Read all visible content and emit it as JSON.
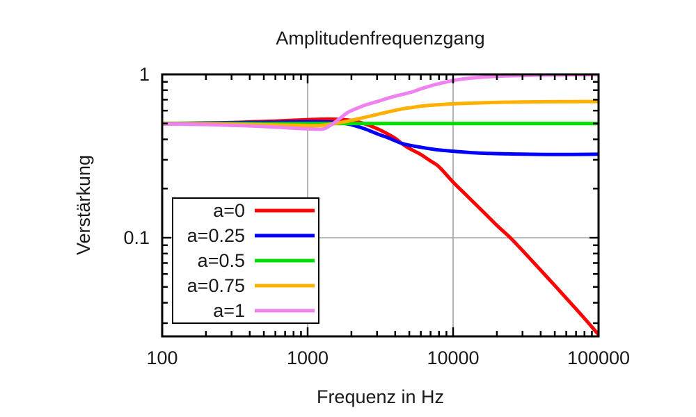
{
  "chart_data": {
    "type": "line",
    "title": "Amplitudenfrequenzgang",
    "xlabel": "Frequenz in Hz",
    "ylabel": "Verstärkung",
    "x_scale": "log",
    "y_scale": "log",
    "xlim": [
      100,
      100000
    ],
    "ylim": [
      0.0249,
      1.0
    ],
    "x_ticks": {
      "major": [
        100,
        1000,
        10000,
        100000
      ],
      "labels": [
        "100",
        "1000",
        "10000",
        "100000"
      ],
      "minor_decades": [
        100,
        1000,
        10000
      ],
      "minor_multipliers": [
        2,
        3,
        4,
        5,
        6,
        7,
        8,
        9
      ]
    },
    "y_ticks": {
      "major": [
        1,
        0.1
      ],
      "labels": [
        "1",
        "0.1"
      ],
      "minor": [
        0.9,
        0.8,
        0.7,
        0.6,
        0.5,
        0.4,
        0.3,
        0.2,
        0.09,
        0.08,
        0.07,
        0.06,
        0.05,
        0.04,
        0.03
      ]
    },
    "grid": {
      "x": [
        1000,
        10000
      ],
      "y": [
        0.1
      ],
      "color": "#9c9c9c"
    },
    "legend": {
      "position": "inside-left-middle",
      "entries": [
        {
          "label": "a=0",
          "color": "#ff0000"
        },
        {
          "label": "a=0.25",
          "color": "#0000ff"
        },
        {
          "label": "a=0.5",
          "color": "#00dd00"
        },
        {
          "label": "a=0.75",
          "color": "#ffb000"
        },
        {
          "label": "a=1",
          "color": "#ee82ee"
        }
      ]
    },
    "series": [
      {
        "name": "a=0",
        "color": "#ff0000",
        "points": [
          [
            100,
            0.501
          ],
          [
            140,
            0.502
          ],
          [
            200,
            0.504
          ],
          [
            300,
            0.507
          ],
          [
            420,
            0.512
          ],
          [
            600,
            0.518
          ],
          [
            800,
            0.524
          ],
          [
            1000,
            0.528
          ],
          [
            1200,
            0.531
          ],
          [
            1400,
            0.532
          ],
          [
            1700,
            0.529
          ],
          [
            2000,
            0.522
          ],
          [
            2400,
            0.502
          ],
          [
            2800,
            0.478
          ],
          [
            3300,
            0.447
          ],
          [
            4000,
            0.406
          ],
          [
            4430,
            0.378
          ],
          [
            5000,
            0.352
          ],
          [
            5900,
            0.326
          ],
          [
            7000,
            0.295
          ],
          [
            8000,
            0.272
          ],
          [
            10000,
            0.219
          ],
          [
            12500,
            0.18
          ],
          [
            16000,
            0.145
          ],
          [
            20000,
            0.119
          ],
          [
            25000,
            0.099
          ],
          [
            32000,
            0.0785
          ],
          [
            40000,
            0.0633
          ],
          [
            50000,
            0.051
          ],
          [
            65000,
            0.0394
          ],
          [
            80000,
            0.0321
          ],
          [
            100000,
            0.0255
          ]
        ]
      },
      {
        "name": "a=0.25",
        "color": "#0000ff",
        "points": [
          [
            100,
            0.5005
          ],
          [
            150,
            0.501
          ],
          [
            220,
            0.503
          ],
          [
            320,
            0.505
          ],
          [
            470,
            0.508
          ],
          [
            650,
            0.51
          ],
          [
            850,
            0.512
          ],
          [
            1050,
            0.513
          ],
          [
            1250,
            0.5125
          ],
          [
            1500,
            0.51
          ],
          [
            1800,
            0.501
          ],
          [
            2100,
            0.486
          ],
          [
            2500,
            0.462
          ],
          [
            3000,
            0.433
          ],
          [
            3600,
            0.408
          ],
          [
            4430,
            0.378
          ],
          [
            5200,
            0.366
          ],
          [
            6200,
            0.356
          ],
          [
            7500,
            0.347
          ],
          [
            9000,
            0.341
          ],
          [
            11000,
            0.336
          ],
          [
            14000,
            0.331
          ],
          [
            18000,
            0.328
          ],
          [
            24000,
            0.326
          ],
          [
            32000,
            0.3245
          ],
          [
            45000,
            0.3235
          ],
          [
            65000,
            0.3235
          ],
          [
            100000,
            0.3245
          ]
        ]
      },
      {
        "name": "a=0.5",
        "color": "#00dd00",
        "points": [
          [
            100,
            0.5
          ],
          [
            1000,
            0.5
          ],
          [
            10000,
            0.5
          ],
          [
            100000,
            0.5
          ]
        ]
      },
      {
        "name": "a=0.75",
        "color": "#ffb000",
        "points": [
          [
            100,
            0.4985
          ],
          [
            150,
            0.498
          ],
          [
            220,
            0.4965
          ],
          [
            320,
            0.4945
          ],
          [
            470,
            0.492
          ],
          [
            650,
            0.4895
          ],
          [
            850,
            0.4875
          ],
          [
            1050,
            0.4865
          ],
          [
            1250,
            0.4875
          ],
          [
            1550,
            0.5
          ],
          [
            1900,
            0.518
          ],
          [
            2300,
            0.538
          ],
          [
            2800,
            0.56
          ],
          [
            3400,
            0.583
          ],
          [
            4430,
            0.614
          ],
          [
            5200,
            0.627
          ],
          [
            5900,
            0.637
          ],
          [
            7000,
            0.647
          ],
          [
            8500,
            0.655
          ],
          [
            10000,
            0.66
          ],
          [
            13000,
            0.666
          ],
          [
            17000,
            0.671
          ],
          [
            22000,
            0.675
          ],
          [
            30000,
            0.678
          ],
          [
            45000,
            0.68
          ],
          [
            70000,
            0.681
          ],
          [
            100000,
            0.682
          ]
        ]
      },
      {
        "name": "a=1",
        "color": "#ee82ee",
        "points": [
          [
            100,
            0.497
          ],
          [
            150,
            0.4955
          ],
          [
            220,
            0.492
          ],
          [
            320,
            0.487
          ],
          [
            470,
            0.481
          ],
          [
            650,
            0.474
          ],
          [
            850,
            0.467
          ],
          [
            1000,
            0.464
          ],
          [
            1150,
            0.4625
          ],
          [
            1300,
            0.4645
          ],
          [
            1500,
            0.501
          ],
          [
            1700,
            0.545
          ],
          [
            1890,
            0.585
          ],
          [
            2114,
            0.612
          ],
          [
            2500,
            0.65
          ],
          [
            3040,
            0.684
          ],
          [
            3700,
            0.722
          ],
          [
            4430,
            0.752
          ],
          [
            5200,
            0.78
          ],
          [
            6000,
            0.815
          ],
          [
            7000,
            0.85
          ],
          [
            8130,
            0.88
          ],
          [
            10000,
            0.917
          ],
          [
            12000,
            0.94
          ],
          [
            15000,
            0.958
          ],
          [
            20000,
            0.973
          ],
          [
            27000,
            0.982
          ],
          [
            38000,
            0.989
          ],
          [
            55000,
            0.993
          ],
          [
            75000,
            0.9955
          ],
          [
            100000,
            0.997
          ]
        ]
      }
    ],
    "style": {
      "frame_color": "#000000",
      "background": "#ffffff",
      "curve_width": 5,
      "grid_width": 1.5,
      "frame_width": 3,
      "tick_width": 2.5
    }
  }
}
